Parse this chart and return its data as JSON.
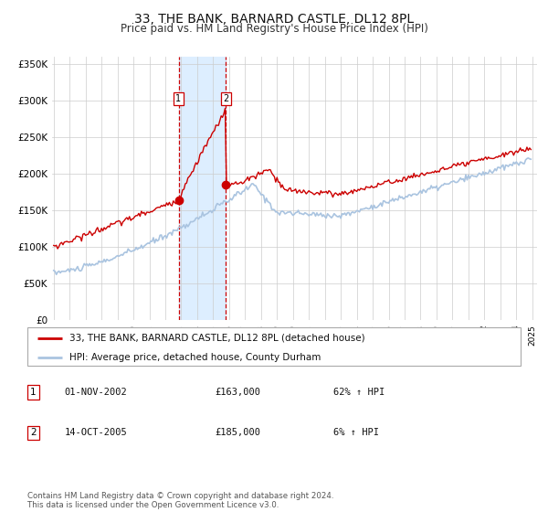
{
  "title": "33, THE BANK, BARNARD CASTLE, DL12 8PL",
  "subtitle": "Price paid vs. HM Land Registry's House Price Index (HPI)",
  "title_fontsize": 10,
  "subtitle_fontsize": 8.5,
  "bg_color": "#ffffff",
  "plot_bg_color": "#ffffff",
  "grid_color": "#cccccc",
  "hpi_line_color": "#aac4e0",
  "price_line_color": "#cc0000",
  "sale1_date_num": 2002.83,
  "sale1_price": 163000,
  "sale2_date_num": 2005.79,
  "sale2_price": 185000,
  "highlight_color": "#ddeeff",
  "dashed_line_color": "#cc0000",
  "legend_entries": [
    "33, THE BANK, BARNARD CASTLE, DL12 8PL (detached house)",
    "HPI: Average price, detached house, County Durham"
  ],
  "table_data": [
    [
      "1",
      "01-NOV-2002",
      "£163,000",
      "62% ↑ HPI"
    ],
    [
      "2",
      "14-OCT-2005",
      "£185,000",
      "6% ↑ HPI"
    ]
  ],
  "footnote": "Contains HM Land Registry data © Crown copyright and database right 2024.\nThis data is licensed under the Open Government Licence v3.0.",
  "ylim": [
    0,
    360000
  ],
  "yticks": [
    0,
    50000,
    100000,
    150000,
    200000,
    250000,
    300000,
    350000
  ],
  "ytick_labels": [
    "£0",
    "£50K",
    "£100K",
    "£150K",
    "£200K",
    "£250K",
    "£300K",
    "£350K"
  ]
}
